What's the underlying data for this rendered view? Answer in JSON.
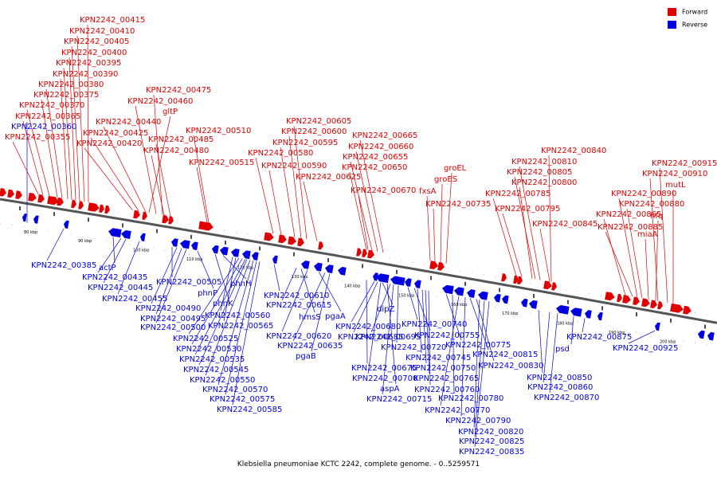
{
  "legend": {
    "forward": {
      "label": "Forward",
      "color": "#e00000"
    },
    "reverse": {
      "label": "Reverse",
      "color": "#0000e0"
    }
  },
  "caption": "Klebsiella pneumoniae KCTC 2242, complete genome. - 0..5259571",
  "scale_ticks": [
    "80 kbp",
    "90 kbp",
    "100 kbp",
    "110 kbp",
    "120 kbp",
    "130 kbp",
    "140 kbp",
    "150 kbp",
    "160 kbp",
    "170 kbp",
    "180 kbp",
    "190 kbp",
    "200 kbp"
  ],
  "forward_labels": [
    "KPN2242_00415",
    "KPN2242_00410",
    "KPN2242_00405",
    "KPN2242_00400",
    "KPN2242_00395",
    "KPN2242_00390",
    "KPN2242_00380",
    "KPN2242_00375",
    "KPN2242_00370",
    "KPN2242_00365",
    "KPN2242_00355",
    "KPN2242_00475",
    "KPN2242_00460",
    "gltP",
    "KPN2242_00440",
    "KPN2242_00425",
    "KPN2242_00420",
    "KPN2242_00510",
    "KPN2242_00485",
    "KPN2242_00480",
    "KPN2242_00515",
    "KPN2242_00605",
    "KPN2242_00600",
    "KPN2242_00595",
    "KPN2242_00580",
    "KPN2242_00590",
    "KPN2242_00625",
    "KPN2242_00665",
    "KPN2242_00660",
    "KPN2242_00655",
    "KPN2242_00650",
    "KPN2242_00670",
    "fxsA",
    "groEL",
    "groES",
    "KPN2242_00735",
    "KPN2242_00840",
    "KPN2242_00810",
    "KPN2242_00805",
    "KPN2242_00800",
    "KPN2242_00785",
    "KPN2242_00795",
    "KPN2242_00845",
    "KPN2242_00915",
    "KPN2242_00910",
    "mutL",
    "KPN2242_00890",
    "KPN2242_00880",
    "KPN2242_00865",
    "hfq",
    "KPN2242_00885",
    "miaA"
  ],
  "reverse_labels": [
    "KPN2242_00360",
    "KPN2242_00385",
    "actP",
    "KPN2242_00435",
    "KPN2242_00445",
    "KPN2242_00455",
    "KPN2242_00505",
    "KPN2242_00490",
    "KPN2242_00495",
    "KPN2242_00500",
    "phnP",
    "phnK",
    "phnH",
    "KPN2242_00560",
    "KPN2242_00565",
    "KPN2242_00525",
    "KPN2242_00530",
    "KPN2242_00535",
    "KPN2242_00545",
    "KPN2242_00550",
    "KPN2242_00570",
    "KPN2242_00575",
    "KPN2242_00585",
    "KPN2242_00610",
    "KPN2242_00615",
    "hmsS",
    "pgaA",
    "KPN2242_00620",
    "KPN2242_00635",
    "pgaB",
    "dipZ",
    "KPN2242_00680",
    "KPN2242_00685",
    "KPN2242_00695",
    "KPN2242_00675",
    "KPN2242_00700",
    "aspA",
    "KPN2242_00715",
    "KPN2242_00740",
    "KPN2242_00720",
    "KPN2242_00755",
    "KPN2242_00745",
    "KPN2242_00750",
    "KPN2242_00775",
    "KPN2242_00765",
    "KPN2242_00760",
    "KPN2242_00780",
    "KPN2242_00770",
    "KPN2242_00790",
    "KPN2242_00815",
    "KPN2242_00830",
    "KPN2242_00820",
    "KPN2242_00825",
    "KPN2242_00835",
    "KPN2242_00850",
    "KPN2242_00860",
    "KPN2242_00870",
    "KPN2242_00875",
    "psd",
    "KPN2242_00925"
  ]
}
